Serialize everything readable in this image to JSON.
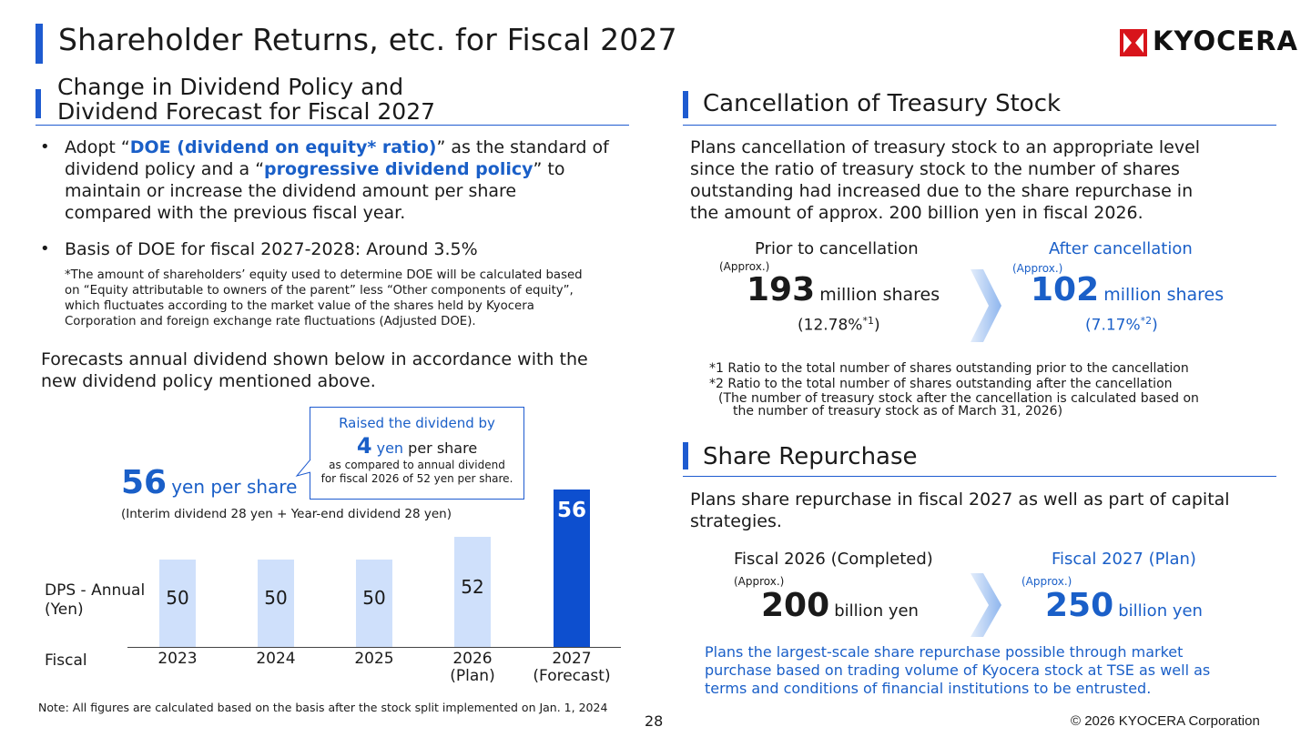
{
  "header": {
    "title": "Shareholder Returns, etc. for Fiscal 2027",
    "logo_text": "KYOCERA"
  },
  "dividend": {
    "section_title_line1": "Change in Dividend Policy and",
    "section_title_line2": "Dividend Forecast for Fiscal 2027",
    "bullet1": {
      "pre": "Adopt “",
      "hl1": "DOE (dividend on equity* ratio)",
      "mid": "” as the standard of",
      "line2_pre": "dividend policy and a “",
      "hl2": "progressive dividend policy",
      "line2_post": "” to",
      "line3": "maintain or increase the dividend amount per share",
      "line4": "compared with the previous fiscal year."
    },
    "bullet2": "Basis of DOE for fiscal 2027-2028: Around 3.5%",
    "note_lines": [
      "*The amount of shareholders’ equity used to determine DOE will be calculated based",
      "on “Equity attributable to owners of the parent” less “Other components of equity”,",
      "which fluctuates according to the market value of the shares held by Kyocera",
      "Corporation and foreign exchange rate fluctuations (Adjusted DOE)."
    ],
    "forecast_line1": "Forecasts annual dividend shown below in accordance with the",
    "forecast_line2": "new dividend policy mentioned above.",
    "callout": {
      "line1": "Raised the dividend by",
      "num": "4",
      "unit": "yen",
      "post": "per share",
      "line3": "as compared to annual dividend",
      "line4": "for fiscal 2026 of 52 yen per share."
    },
    "headline_num": "56",
    "headline_unit": "yen per share",
    "headline_sub": "(Interim dividend 28 yen + Year-end dividend 28 yen)",
    "row_label_dps_1": "DPS - Annual",
    "row_label_dps_2": "(Yen)",
    "row_label_fiscal": "Fiscal",
    "footnote": "Note: All figures are calculated based on the basis after the stock split implemented on Jan. 1, 2024"
  },
  "chart_data": {
    "type": "bar",
    "categories": [
      "2023",
      "2024",
      "2025",
      "2026",
      "2027"
    ],
    "category_sub": [
      "",
      "",
      "",
      "(Plan)",
      "(Forecast)"
    ],
    "values": [
      50,
      50,
      50,
      52,
      56
    ],
    "highlight_index": 4,
    "ylim": [
      0,
      56
    ]
  },
  "treasury": {
    "section_title": "Cancellation of Treasury Stock",
    "para": [
      "Plans cancellation of treasury stock to an appropriate level",
      "since the ratio of treasury stock to the number of shares",
      "outstanding had increased due to the share repurchase in",
      "the amount of approx. 200 billion yen in fiscal 2026."
    ],
    "prior_label": "Prior to cancellation",
    "prior_approx": "(Approx.)",
    "prior_num": "193",
    "prior_unit": "million shares",
    "prior_ratio": "(12.78%",
    "prior_sup": "*1",
    "prior_close": ")",
    "after_label": "After cancellation",
    "after_approx": "(Approx.)",
    "after_num": "102",
    "after_unit": "million shares",
    "after_ratio": "(7.17%",
    "after_sup": "*2",
    "after_close": ")",
    "notes": [
      "*1 Ratio to the total number of shares outstanding prior to the cancellation",
      "*2 Ratio to the total number of shares outstanding after the cancellation",
      "(The number of treasury stock after the cancellation is calculated based on",
      "the number of treasury stock as of March 31, 2026)"
    ]
  },
  "repurchase": {
    "section_title": "Share Repurchase",
    "para": [
      "Plans share repurchase in fiscal 2027 as well as part of capital",
      "strategies."
    ],
    "left_label": "Fiscal 2026 (Completed)",
    "left_approx": "(Approx.)",
    "left_num": "200",
    "left_unit": "billion yen",
    "right_label": "Fiscal 2027 (Plan)",
    "right_approx": "(Approx.)",
    "right_num": "250",
    "right_unit": "billion yen",
    "blue_note": [
      "Plans the largest-scale share repurchase possible through market",
      "purchase based on trading volume of Kyocera stock at TSE as well as",
      "terms and conditions of financial institutions to be entrusted."
    ]
  },
  "footer": {
    "page": "28",
    "copyright": "© 2026 KYOCERA Corporation"
  },
  "colors": {
    "accent": "#1e5bd0",
    "bar_light": "#cfe0fb",
    "bar_dark": "#0d4fcf"
  }
}
